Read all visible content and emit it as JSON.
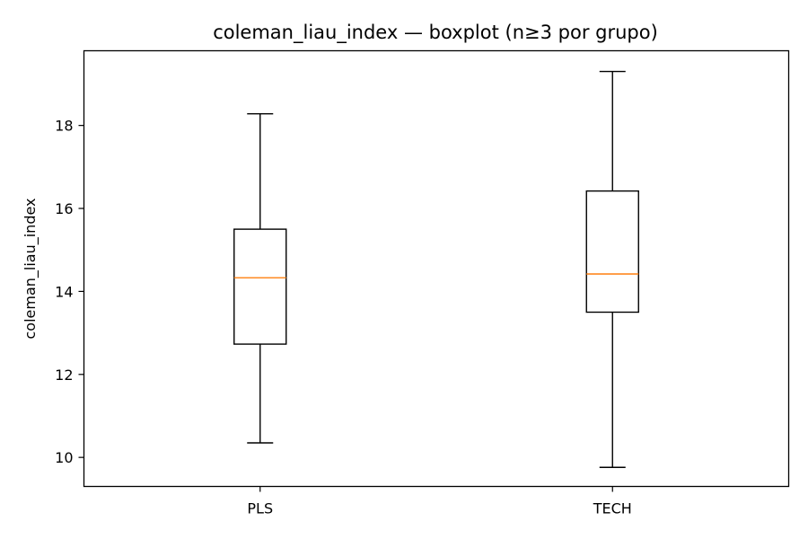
{
  "chart_data": {
    "type": "boxplot",
    "title": "coleman_liau_index — boxplot (n≥3 por grupo)",
    "xlabel": "",
    "ylabel": "coleman_liau_index",
    "ylim": [
      9.3,
      19.8
    ],
    "yticks": [
      10,
      12,
      14,
      16,
      18
    ],
    "yticks_labels": [
      "10",
      "12",
      "14",
      "16",
      "18"
    ],
    "grid": false,
    "categories": [
      "PLS",
      "TECH"
    ],
    "boxes": [
      {
        "label": "PLS",
        "whisker_low": 10.35,
        "q1": 12.73,
        "median": 14.33,
        "q3": 15.5,
        "whisker_high": 18.28
      },
      {
        "label": "TECH",
        "whisker_low": 9.76,
        "q1": 13.5,
        "median": 14.42,
        "q3": 16.42,
        "whisker_high": 19.3
      }
    ],
    "colors": {
      "box": "#000000",
      "median": "#ff7f0e",
      "axes": "#000000"
    }
  }
}
